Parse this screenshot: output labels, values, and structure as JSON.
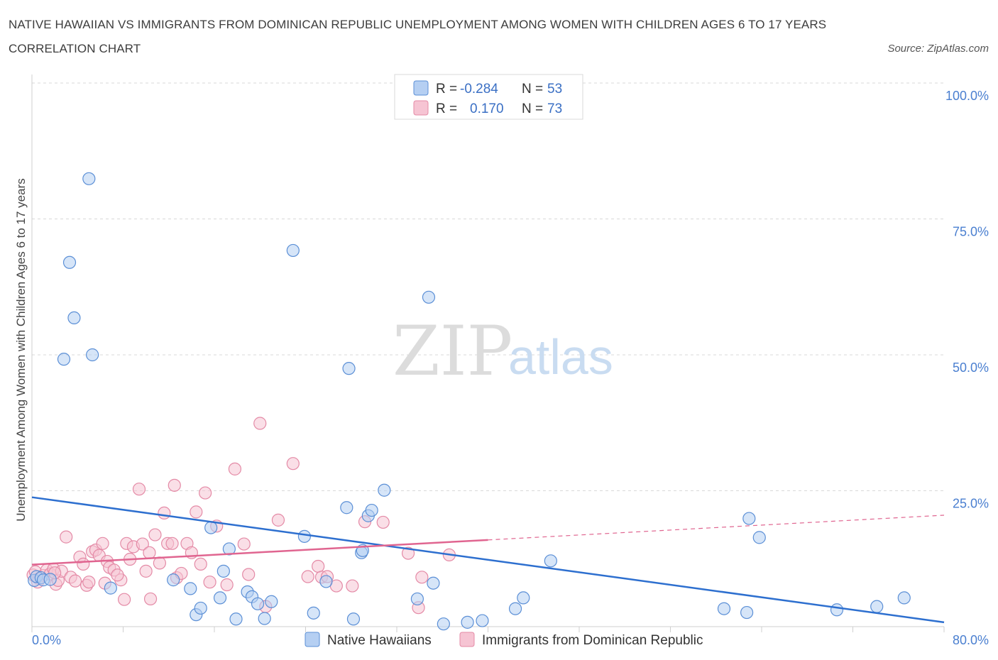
{
  "header": {
    "title": "NATIVE HAWAIIAN VS IMMIGRANTS FROM DOMINICAN REPUBLIC UNEMPLOYMENT AMONG WOMEN WITH CHILDREN AGES 6 TO 17 YEARS CORRELATION CHART",
    "source": "Source: ZipAtlas.com"
  },
  "watermark": {
    "zip": "ZIP",
    "atlas": "atlas"
  },
  "colors": {
    "blue_fill": "#b5cff2",
    "blue_stroke": "#5b8fd6",
    "blue_line": "#2d6fcf",
    "pink_fill": "#f6c4d3",
    "pink_stroke": "#e48aa6",
    "pink_line": "#e06590",
    "grid": "#d8d8d8",
    "axis_text": "#4a7fd0"
  },
  "legend": {
    "rows": [
      {
        "r_label": "R =",
        "r_value": "-0.284",
        "n_label": "N =",
        "n_value": "53"
      },
      {
        "r_label": "R =",
        "r_value": "0.170",
        "n_label": "N =",
        "n_value": "73"
      }
    ]
  },
  "chart_data": {
    "type": "scatter",
    "title": "NATIVE HAWAIIAN VS IMMIGRANTS FROM DOMINICAN REPUBLIC UNEMPLOYMENT AMONG WOMEN WITH CHILDREN AGES 6 TO 17 YEARS CORRELATION CHART",
    "xlabel": "",
    "ylabel": "Unemployment Among Women with Children Ages 6 to 17 years",
    "xlim": [
      0,
      80
    ],
    "ylim": [
      0,
      100
    ],
    "x_tick_labels": [
      "0.0%",
      "80.0%"
    ],
    "y_ticks": [
      25,
      50,
      75,
      100
    ],
    "y_tick_labels": [
      "25.0%",
      "50.0%",
      "75.0%",
      "100.0%"
    ],
    "grid": true,
    "legend_position": "top-center",
    "series": [
      {
        "name": "Native Hawaiians",
        "color": "#5b8fd6",
        "r": -0.284,
        "n": 53,
        "trend": {
          "x": [
            0,
            80
          ],
          "y": [
            23.8,
            0.8
          ]
        },
        "points": [
          [
            0.2,
            8.5
          ],
          [
            0.4,
            9.2
          ],
          [
            0.8,
            9.0
          ],
          [
            1.0,
            8.6
          ],
          [
            1.6,
            8.7
          ],
          [
            3.3,
            67.0
          ],
          [
            3.7,
            56.8
          ],
          [
            2.8,
            49.2
          ],
          [
            5.0,
            82.4
          ],
          [
            5.3,
            50.0
          ],
          [
            6.9,
            7.1
          ],
          [
            12.4,
            8.6
          ],
          [
            13.9,
            7.0
          ],
          [
            14.4,
            2.2
          ],
          [
            14.8,
            3.4
          ],
          [
            15.7,
            18.2
          ],
          [
            16.5,
            5.3
          ],
          [
            16.8,
            10.2
          ],
          [
            17.3,
            14.3
          ],
          [
            17.9,
            1.4
          ],
          [
            18.9,
            6.4
          ],
          [
            19.3,
            5.5
          ],
          [
            19.8,
            4.2
          ],
          [
            20.4,
            1.5
          ],
          [
            21.0,
            4.6
          ],
          [
            22.9,
            69.2
          ],
          [
            23.9,
            16.6
          ],
          [
            24.7,
            2.5
          ],
          [
            25.8,
            8.3
          ],
          [
            27.6,
            21.9
          ],
          [
            27.8,
            47.5
          ],
          [
            28.2,
            1.4
          ],
          [
            28.9,
            13.6
          ],
          [
            29.5,
            20.4
          ],
          [
            29.8,
            21.4
          ],
          [
            30.9,
            25.1
          ],
          [
            33.8,
            5.1
          ],
          [
            34.8,
            60.6
          ],
          [
            35.2,
            8.0
          ],
          [
            36.1,
            0.5
          ],
          [
            38.2,
            0.8
          ],
          [
            39.5,
            1.1
          ],
          [
            42.4,
            3.3
          ],
          [
            43.1,
            5.3
          ],
          [
            45.5,
            12.1
          ],
          [
            60.7,
            3.3
          ],
          [
            62.7,
            2.6
          ],
          [
            62.9,
            19.9
          ],
          [
            63.8,
            16.4
          ],
          [
            70.6,
            3.1
          ],
          [
            74.1,
            3.7
          ],
          [
            76.5,
            5.3
          ],
          [
            29.0,
            14.0
          ]
        ]
      },
      {
        "name": "Immigrants from Dominican Republic",
        "color": "#e48aa6",
        "r": 0.17,
        "n": 73,
        "trend": {
          "x": [
            0,
            80
          ],
          "y": [
            11.4,
            20.5
          ],
          "solid_until_x": 40
        },
        "points": [
          [
            0.1,
            9.5
          ],
          [
            0.3,
            10.1
          ],
          [
            0.6,
            8.8
          ],
          [
            1.0,
            9.4
          ],
          [
            1.3,
            10.4
          ],
          [
            1.6,
            9.7
          ],
          [
            1.9,
            10.6
          ],
          [
            2.1,
            7.8
          ],
          [
            2.3,
            8.5
          ],
          [
            2.6,
            10.2
          ],
          [
            3.0,
            16.5
          ],
          [
            3.4,
            9.1
          ],
          [
            3.8,
            8.4
          ],
          [
            4.2,
            12.8
          ],
          [
            4.5,
            11.5
          ],
          [
            4.8,
            7.6
          ],
          [
            5.0,
            8.2
          ],
          [
            5.3,
            13.8
          ],
          [
            5.6,
            14.1
          ],
          [
            5.9,
            13.1
          ],
          [
            6.2,
            15.3
          ],
          [
            6.4,
            8.0
          ],
          [
            6.6,
            12.0
          ],
          [
            6.8,
            10.9
          ],
          [
            7.2,
            10.4
          ],
          [
            7.8,
            8.6
          ],
          [
            8.1,
            5.0
          ],
          [
            8.3,
            15.3
          ],
          [
            8.6,
            12.4
          ],
          [
            8.9,
            14.7
          ],
          [
            9.4,
            25.3
          ],
          [
            9.7,
            15.2
          ],
          [
            10.0,
            10.2
          ],
          [
            10.3,
            13.6
          ],
          [
            10.4,
            5.1
          ],
          [
            10.8,
            16.9
          ],
          [
            11.2,
            11.7
          ],
          [
            11.6,
            20.9
          ],
          [
            11.9,
            15.3
          ],
          [
            12.3,
            15.3
          ],
          [
            12.5,
            26.0
          ],
          [
            12.7,
            9.0
          ],
          [
            13.1,
            9.8
          ],
          [
            13.6,
            15.3
          ],
          [
            14.0,
            13.6
          ],
          [
            14.4,
            21.1
          ],
          [
            14.8,
            11.5
          ],
          [
            15.2,
            24.6
          ],
          [
            15.6,
            8.2
          ],
          [
            16.2,
            18.5
          ],
          [
            17.1,
            7.7
          ],
          [
            17.8,
            29.0
          ],
          [
            18.6,
            15.2
          ],
          [
            19.0,
            9.6
          ],
          [
            20.0,
            37.4
          ],
          [
            20.5,
            3.7
          ],
          [
            21.6,
            19.6
          ],
          [
            22.9,
            30.0
          ],
          [
            24.2,
            9.2
          ],
          [
            25.1,
            11.1
          ],
          [
            25.4,
            9.1
          ],
          [
            25.9,
            9.2
          ],
          [
            26.7,
            7.5
          ],
          [
            28.1,
            7.5
          ],
          [
            29.2,
            19.3
          ],
          [
            30.8,
            19.2
          ],
          [
            33.0,
            13.5
          ],
          [
            33.9,
            3.5
          ],
          [
            34.2,
            9.1
          ],
          [
            36.6,
            13.2
          ],
          [
            0.5,
            8.2
          ],
          [
            2.0,
            9.9
          ],
          [
            7.5,
            9.5
          ]
        ]
      }
    ]
  }
}
